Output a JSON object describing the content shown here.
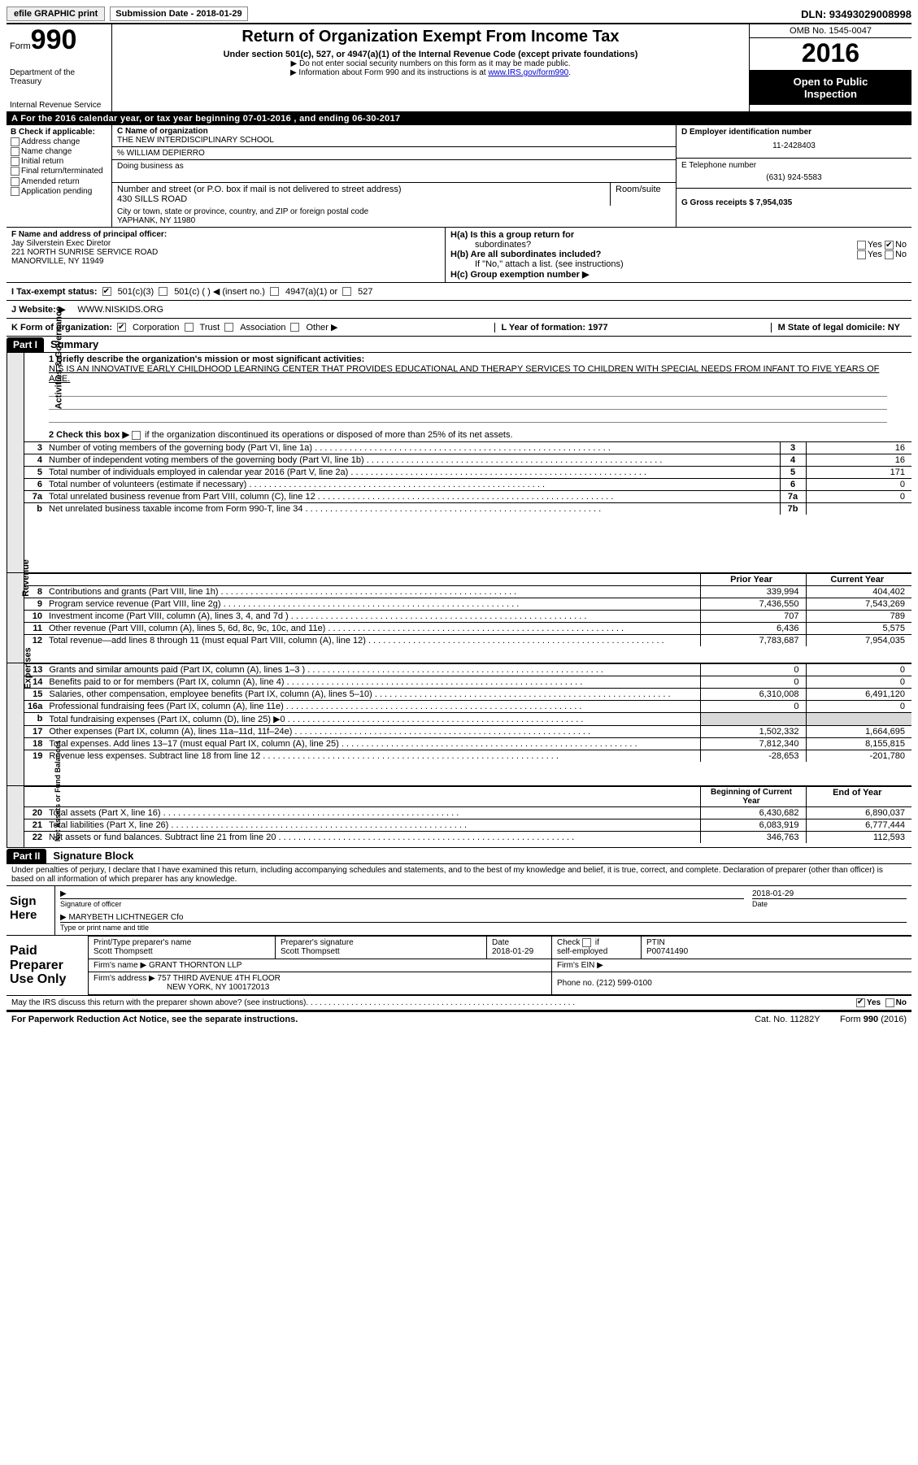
{
  "topbar": {
    "efile": "efile GRAPHIC print",
    "submission_label": "Submission Date - 2018-01-29",
    "dln": "DLN: 93493029008998"
  },
  "header": {
    "form_word": "Form",
    "form_number": "990",
    "dept1": "Department of the Treasury",
    "dept2": "Internal Revenue Service",
    "title": "Return of Organization Exempt From Income Tax",
    "subtitle": "Under section 501(c), 527, or 4947(a)(1) of the Internal Revenue Code (except private foundations)",
    "note1": "▶ Do not enter social security numbers on this form as it may be made public.",
    "note2_pre": "▶ Information about Form 990 and its instructions is at ",
    "note2_link": "www.IRS.gov/form990",
    "omb": "OMB No. 1545-0047",
    "year": "2016",
    "inspect1": "Open to Public",
    "inspect2": "Inspection"
  },
  "row_a": "A  For the 2016 calendar year, or tax year beginning 07-01-2016   , and ending 06-30-2017",
  "col_b": {
    "label": "B Check if applicable:",
    "opts": [
      "Address change",
      "Name change",
      "Initial return",
      "Final return/terminated",
      "Amended return",
      "Application pending"
    ]
  },
  "col_c": {
    "name_label": "C Name of organization",
    "name": "THE NEW INTERDISCIPLINARY SCHOOL",
    "care_of": "% WILLIAM DEPIERRO",
    "dba_label": "Doing business as",
    "street_label": "Number and street (or P.O. box if mail is not delivered to street address)",
    "room_label": "Room/suite",
    "street": "430 SILLS ROAD",
    "city_label": "City or town, state or province, country, and ZIP or foreign postal code",
    "city": "YAPHANK, NY  11980"
  },
  "col_d": {
    "ein_label": "D Employer identification number",
    "ein": "11-2428403",
    "phone_label": "E Telephone number",
    "phone": "(631) 924-5583",
    "gross_label": "G Gross receipts $ 7,954,035"
  },
  "section_f": {
    "label": "F  Name and address of principal officer:",
    "line1": "Jay Silverstein Exec Diretor",
    "line2": "221 NORTH SUNRISE SERVICE ROAD",
    "line3": "MANORVILLE, NY  11949",
    "ha": "H(a)  Is this a group return for",
    "ha2": "subordinates?",
    "hb": "H(b)  Are all subordinates included?",
    "hb_note": "If \"No,\" attach a list. (see instructions)",
    "hc": "H(c)  Group exemption number ▶",
    "yes": "Yes",
    "no": "No"
  },
  "row_i": {
    "label": "I  Tax-exempt status:",
    "o1": "501(c)(3)",
    "o2": "501(c) (  ) ◀ (insert no.)",
    "o3": "4947(a)(1) or",
    "o4": "527"
  },
  "row_j": {
    "label": "J  Website: ▶",
    "value": "WWW.NISKIDS.ORG"
  },
  "row_k": {
    "label": "K Form of organization:",
    "o1": "Corporation",
    "o2": "Trust",
    "o3": "Association",
    "o4": "Other ▶",
    "l": "L Year of formation: 1977",
    "m": "M State of legal domicile: NY"
  },
  "part1": {
    "hdr": "Part I",
    "label": "Summary"
  },
  "summary": {
    "q1": "1  Briefly describe the organization's mission or most significant activities:",
    "mission": "NIS IS AN INNOVATIVE EARLY CHILDHOOD LEARNING CENTER THAT PROVIDES EDUCATIONAL AND THERAPY SERVICES TO CHILDREN WITH SPECIAL NEEDS FROM INFANT TO FIVE YEARS OF AGE.",
    "q2_pre": "2  Check this box ▶ ",
    "q2_post": "  if the organization discontinued its operations or disposed of more than 25% of its net assets."
  },
  "sidelabels": {
    "s1": "Activities & Governance",
    "s2": "Revenue",
    "s3": "Expenses",
    "s4": "Net Assets or\nFund Balances"
  },
  "gov_lines": [
    {
      "n": "3",
      "d": "Number of voting members of the governing body (Part VI, line 1a)",
      "b": "3",
      "v": "16"
    },
    {
      "n": "4",
      "d": "Number of independent voting members of the governing body (Part VI, line 1b)",
      "b": "4",
      "v": "16"
    },
    {
      "n": "5",
      "d": "Total number of individuals employed in calendar year 2016 (Part V, line 2a)",
      "b": "5",
      "v": "171"
    },
    {
      "n": "6",
      "d": "Total number of volunteers (estimate if necessary)",
      "b": "6",
      "v": "0"
    },
    {
      "n": "7a",
      "d": "Total unrelated business revenue from Part VIII, column (C), line 12",
      "b": "7a",
      "v": "0"
    },
    {
      "n": "b",
      "d": "Net unrelated business taxable income from Form 990-T, line 34",
      "b": "7b",
      "v": ""
    }
  ],
  "col_headers": {
    "py": "Prior Year",
    "cy": "Current Year",
    "boy": "Beginning of Current Year",
    "eoy": "End of Year"
  },
  "rev_lines": [
    {
      "n": "8",
      "d": "Contributions and grants (Part VIII, line 1h)",
      "py": "339,994",
      "cy": "404,402"
    },
    {
      "n": "9",
      "d": "Program service revenue (Part VIII, line 2g)",
      "py": "7,436,550",
      "cy": "7,543,269"
    },
    {
      "n": "10",
      "d": "Investment income (Part VIII, column (A), lines 3, 4, and 7d )",
      "py": "707",
      "cy": "789"
    },
    {
      "n": "11",
      "d": "Other revenue (Part VIII, column (A), lines 5, 6d, 8c, 9c, 10c, and 11e)",
      "py": "6,436",
      "cy": "5,575"
    },
    {
      "n": "12",
      "d": "Total revenue—add lines 8 through 11 (must equal Part VIII, column (A), line 12)",
      "py": "7,783,687",
      "cy": "7,954,035"
    }
  ],
  "exp_lines": [
    {
      "n": "13",
      "d": "Grants and similar amounts paid (Part IX, column (A), lines 1–3 )",
      "py": "0",
      "cy": "0"
    },
    {
      "n": "14",
      "d": "Benefits paid to or for members (Part IX, column (A), line 4)",
      "py": "0",
      "cy": "0"
    },
    {
      "n": "15",
      "d": "Salaries, other compensation, employee benefits (Part IX, column (A), lines 5–10)",
      "py": "6,310,008",
      "cy": "6,491,120"
    },
    {
      "n": "16a",
      "d": "Professional fundraising fees (Part IX, column (A), line 11e)",
      "py": "0",
      "cy": "0"
    },
    {
      "n": "b",
      "d": "Total fundraising expenses (Part IX, column (D), line 25) ▶0",
      "py": "",
      "cy": "",
      "shade": true
    },
    {
      "n": "17",
      "d": "Other expenses (Part IX, column (A), lines 11a–11d, 11f–24e)",
      "py": "1,502,332",
      "cy": "1,664,695"
    },
    {
      "n": "18",
      "d": "Total expenses. Add lines 13–17 (must equal Part IX, column (A), line 25)",
      "py": "7,812,340",
      "cy": "8,155,815"
    },
    {
      "n": "19",
      "d": "Revenue less expenses. Subtract line 18 from line 12",
      "py": "-28,653",
      "cy": "-201,780"
    }
  ],
  "net_lines": [
    {
      "n": "20",
      "d": "Total assets (Part X, line 16)",
      "py": "6,430,682",
      "cy": "6,890,037"
    },
    {
      "n": "21",
      "d": "Total liabilities (Part X, line 26)",
      "py": "6,083,919",
      "cy": "6,777,444"
    },
    {
      "n": "22",
      "d": "Net assets or fund balances. Subtract line 21 from line 20",
      "py": "346,763",
      "cy": "112,593"
    }
  ],
  "part2": {
    "hdr": "Part II",
    "label": "Signature Block"
  },
  "sign": {
    "decl": "Under penalties of perjury, I declare that I have examined this return, including accompanying schedules and statements, and to the best of my knowledge and belief, it is true, correct, and complete. Declaration of preparer (other than officer) is based on all information of which preparer has any knowledge.",
    "here": "Sign Here",
    "sig_of_officer": "Signature of officer",
    "date": "Date",
    "date_val": "2018-01-29",
    "name_title": "MARYBETH LICHTNEGER  Cfo",
    "type_label": "Type or print name and title"
  },
  "prep": {
    "label": "Paid Preparer Use Only",
    "p_name_l": "Print/Type preparer's name",
    "p_name": "Scott Thompsett",
    "p_sig_l": "Preparer's signature",
    "p_sig": "Scott Thompsett",
    "p_date_l": "Date",
    "p_date": "2018-01-29",
    "p_check": "Check        if self-employed",
    "ptin_l": "PTIN",
    "ptin": "P00741490",
    "firm_l": "Firm's name   ▶",
    "firm": "GRANT THORNTON LLP",
    "ein_l": "Firm's EIN ▶",
    "addr_l": "Firm's address ▶",
    "addr1": "757 THIRD AVENUE 4TH FLOOR",
    "addr2": "NEW YORK, NY  100172013",
    "phone_l": "Phone no. (212) 599-0100"
  },
  "discuss": {
    "q": "May the IRS discuss this return with the preparer shown above? (see instructions)",
    "yes": "Yes",
    "no": "No"
  },
  "footer": {
    "left": "For Paperwork Reduction Act Notice, see the separate instructions.",
    "mid": "Cat. No. 11282Y",
    "right": "Form 990 (2016)"
  }
}
